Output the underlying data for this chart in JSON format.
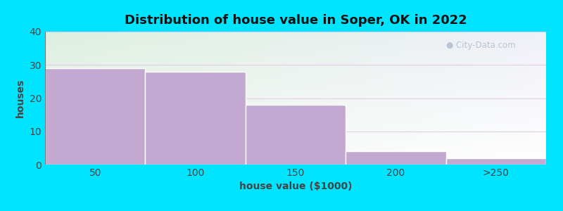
{
  "title": "Distribution of house value in Soper, OK in 2022",
  "xlabel": "house value ($1000)",
  "ylabel": "houses",
  "categories": [
    "50",
    "100",
    "150",
    "200",
    ">250"
  ],
  "values": [
    29,
    28,
    18,
    4,
    2
  ],
  "bar_color": "#c3a8d1",
  "ylim": [
    0,
    40
  ],
  "yticks": [
    0,
    10,
    20,
    30,
    40
  ],
  "background_outer": "#00e5ff",
  "bg_color_topleft": "#ddf0e0",
  "bg_color_topright": "#f0f0f8",
  "bg_color_bottomleft": "#eef5ee",
  "bg_color_bottomright": "#f8f8ff",
  "grid_color": "#e0c8e8",
  "watermark": "City-Data.com",
  "title_fontsize": 13,
  "axis_label_fontsize": 10,
  "tick_fontsize": 10
}
